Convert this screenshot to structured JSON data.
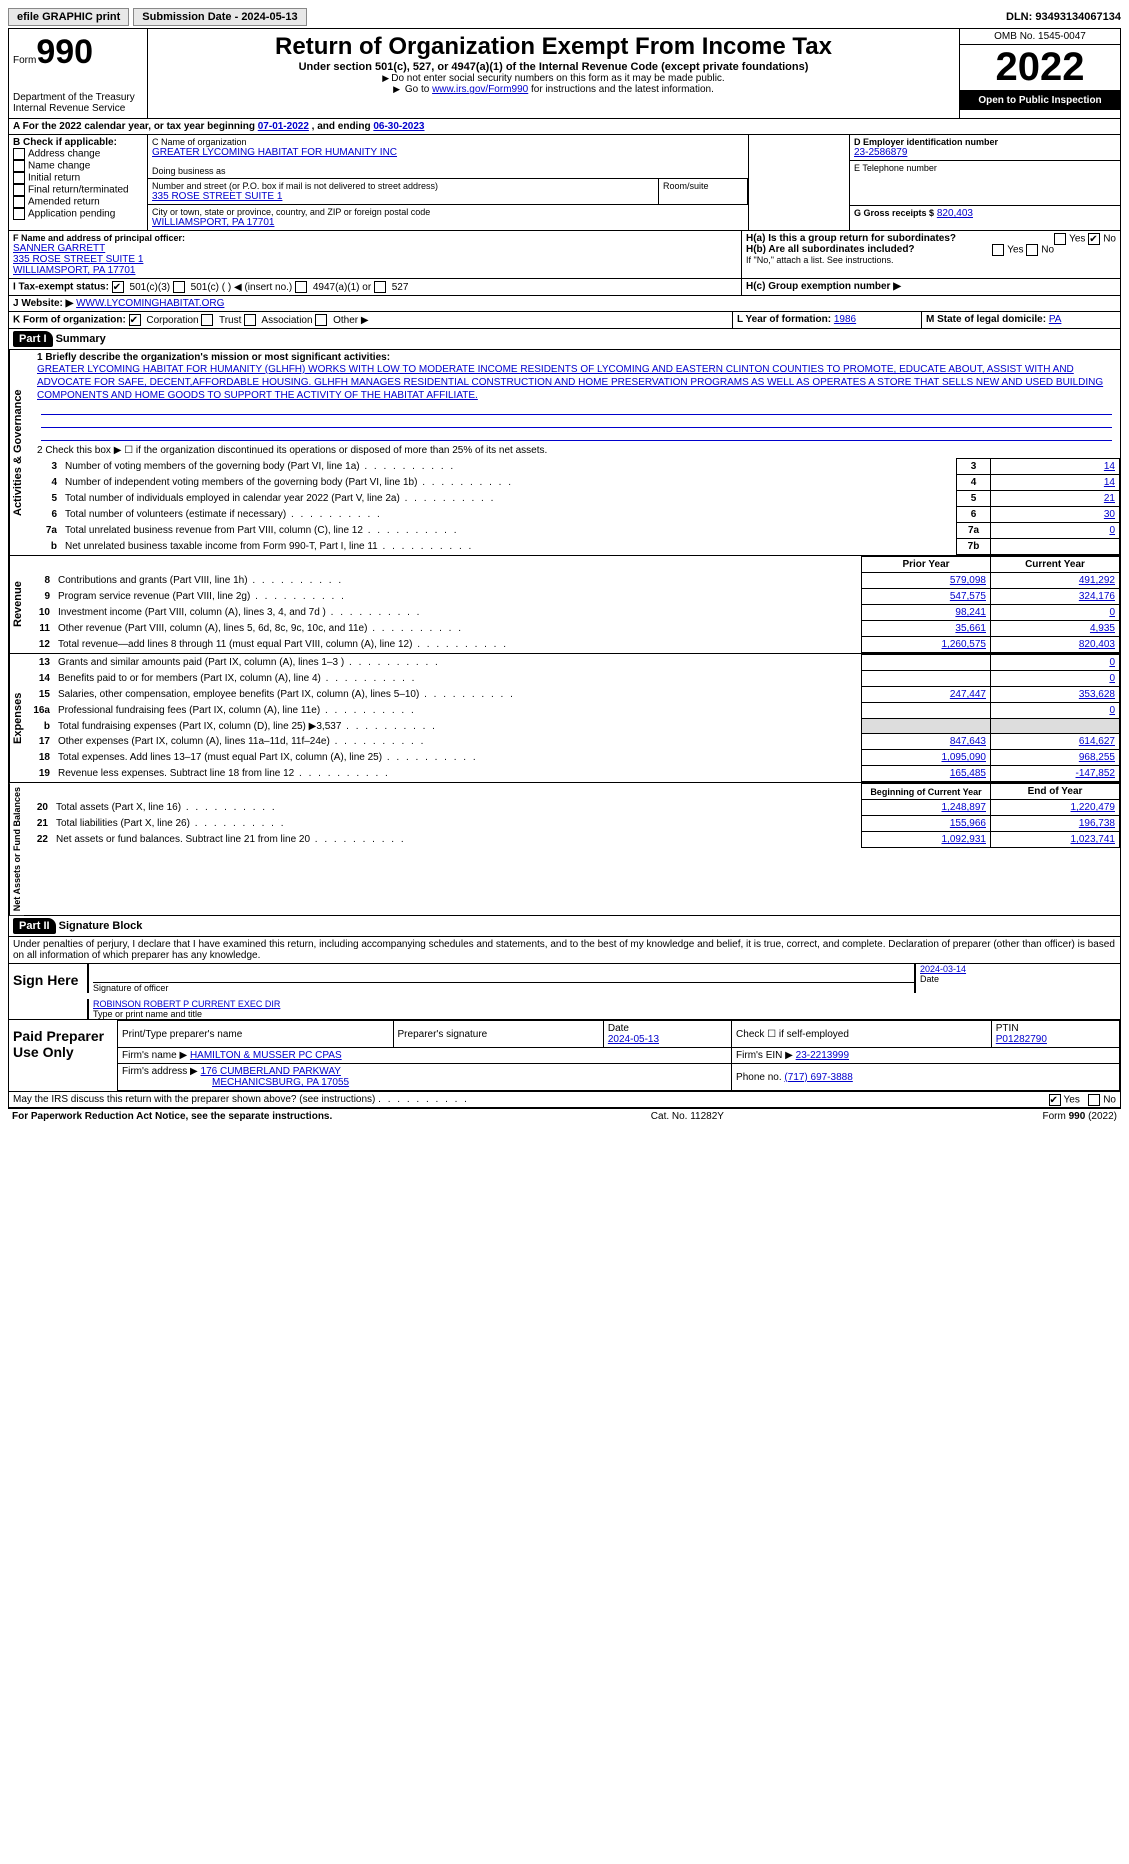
{
  "topbar": {
    "efile": "efile GRAPHIC print",
    "submission": "Submission Date - 2024-05-13",
    "dln_label": "DLN:",
    "dln": "93493134067134"
  },
  "header": {
    "form_label": "Form",
    "form_num": "990",
    "dept": "Department of the Treasury",
    "irs": "Internal Revenue Service",
    "title": "Return of Organization Exempt From Income Tax",
    "subtitle": "Under section 501(c), 527, or 4947(a)(1) of the Internal Revenue Code (except private foundations)",
    "note1": "Do not enter social security numbers on this form as it may be made public.",
    "note2_pre": "Go to ",
    "note2_link": "www.irs.gov/Form990",
    "note2_post": " for instructions and the latest information.",
    "omb": "OMB No. 1545-0047",
    "year": "2022",
    "open": "Open to Public Inspection"
  },
  "periodA": {
    "text_pre": "For the 2022 calendar year, or tax year beginning ",
    "begin": "07-01-2022",
    "mid": " , and ending ",
    "end": "06-30-2023"
  },
  "sectionB": {
    "label": "B Check if applicable:",
    "items": [
      "Address change",
      "Name change",
      "Initial return",
      "Final return/terminated",
      "Amended return",
      "Application pending"
    ]
  },
  "sectionC": {
    "name_label": "C Name of organization",
    "name": "GREATER LYCOMING HABITAT FOR HUMANITY INC",
    "dba_label": "Doing business as",
    "addr_label": "Number and street (or P.O. box if mail is not delivered to street address)",
    "addr": "335 ROSE STREET SUITE 1",
    "room_label": "Room/suite",
    "city_label": "City or town, state or province, country, and ZIP or foreign postal code",
    "city": "WILLIAMSPORT, PA  17701"
  },
  "sectionD": {
    "label": "D Employer identification number",
    "value": "23-2586879"
  },
  "sectionE": {
    "label": "E Telephone number"
  },
  "sectionG": {
    "label": "G Gross receipts $",
    "value": "820,403"
  },
  "sectionF": {
    "label": "F  Name and address of principal officer:",
    "name": "SANNER GARRETT",
    "addr1": "335 ROSE STREET SUITE 1",
    "addr2": "WILLIAMSPORT, PA  17701"
  },
  "sectionH": {
    "ha": "H(a)  Is this a group return for subordinates?",
    "hb": "H(b)  Are all subordinates included?",
    "hb_note": "If \"No,\" attach a list. See instructions.",
    "hc": "H(c)  Group exemption number ▶",
    "yes": "Yes",
    "no": "No"
  },
  "sectionI": {
    "label": "I   Tax-exempt status:",
    "opts": [
      "501(c)(3)",
      "501(c) (  ) ◀ (insert no.)",
      "4947(a)(1) or",
      "527"
    ]
  },
  "sectionJ": {
    "label": "J   Website: ▶",
    "value": "WWW.LYCOMINGHABITAT.ORG"
  },
  "sectionK": {
    "label": "K Form of organization:",
    "opts": [
      "Corporation",
      "Trust",
      "Association",
      "Other ▶"
    ]
  },
  "sectionL": {
    "label": "L Year of formation:",
    "value": "1986"
  },
  "sectionM": {
    "label": "M State of legal domicile:",
    "value": "PA"
  },
  "part1": {
    "header": "Part I",
    "title": "Summary",
    "line1_label": "1  Briefly describe the organization's mission or most significant activities:",
    "mission": "GREATER LYCOMING HABITAT FOR HUMANITY (GLHFH) WORKS WITH LOW TO MODERATE INCOME RESIDENTS OF LYCOMING AND EASTERN CLINTON COUNTIES TO PROMOTE, EDUCATE ABOUT, ASSIST WITH AND ADVOCATE FOR SAFE, DECENT,AFFORDABLE HOUSING. GLHFH MANAGES RESIDENTIAL CONSTRUCTION AND HOME PRESERVATION PROGRAMS AS WELL AS OPERATES A STORE THAT SELLS NEW AND USED BUILDING COMPONENTS AND HOME GOODS TO SUPPORT THE ACTIVITY OF THE HABITAT AFFILIATE.",
    "line2": "2   Check this box ▶ ☐  if the organization discontinued its operations or disposed of more than 25% of its net assets.",
    "vert_activities": "Activities & Governance",
    "gov_rows": [
      {
        "n": "3",
        "d": "Number of voting members of the governing body (Part VI, line 1a)",
        "k": "3",
        "v": "14"
      },
      {
        "n": "4",
        "d": "Number of independent voting members of the governing body (Part VI, line 1b)",
        "k": "4",
        "v": "14"
      },
      {
        "n": "5",
        "d": "Total number of individuals employed in calendar year 2022 (Part V, line 2a)",
        "k": "5",
        "v": "21"
      },
      {
        "n": "6",
        "d": "Total number of volunteers (estimate if necessary)",
        "k": "6",
        "v": "30"
      },
      {
        "n": "7a",
        "d": "Total unrelated business revenue from Part VIII, column (C), line 12",
        "k": "7a",
        "v": "0"
      },
      {
        "n": "b",
        "d": "Net unrelated business taxable income from Form 990-T, Part I, line 11",
        "k": "7b",
        "v": ""
      }
    ],
    "vert_revenue": "Revenue",
    "rev_header": {
      "prior": "Prior Year",
      "current": "Current Year"
    },
    "rev_rows": [
      {
        "n": "8",
        "d": "Contributions and grants (Part VIII, line 1h)",
        "p": "579,098",
        "c": "491,292"
      },
      {
        "n": "9",
        "d": "Program service revenue (Part VIII, line 2g)",
        "p": "547,575",
        "c": "324,176"
      },
      {
        "n": "10",
        "d": "Investment income (Part VIII, column (A), lines 3, 4, and 7d )",
        "p": "98,241",
        "c": "0"
      },
      {
        "n": "11",
        "d": "Other revenue (Part VIII, column (A), lines 5, 6d, 8c, 9c, 10c, and 11e)",
        "p": "35,661",
        "c": "4,935"
      },
      {
        "n": "12",
        "d": "Total revenue—add lines 8 through 11 (must equal Part VIII, column (A), line 12)",
        "p": "1,260,575",
        "c": "820,403"
      }
    ],
    "vert_expenses": "Expenses",
    "exp_rows": [
      {
        "n": "13",
        "d": "Grants and similar amounts paid (Part IX, column (A), lines 1–3 )",
        "p": "",
        "c": "0"
      },
      {
        "n": "14",
        "d": "Benefits paid to or for members (Part IX, column (A), line 4)",
        "p": "",
        "c": "0"
      },
      {
        "n": "15",
        "d": "Salaries, other compensation, employee benefits (Part IX, column (A), lines 5–10)",
        "p": "247,447",
        "c": "353,628"
      },
      {
        "n": "16a",
        "d": "Professional fundraising fees (Part IX, column (A), line 11e)",
        "p": "",
        "c": "0"
      },
      {
        "n": "b",
        "d": "Total fundraising expenses (Part IX, column (D), line 25) ▶3,537",
        "p": "shade",
        "c": "shade"
      },
      {
        "n": "17",
        "d": "Other expenses (Part IX, column (A), lines 11a–11d, 11f–24e)",
        "p": "847,643",
        "c": "614,627"
      },
      {
        "n": "18",
        "d": "Total expenses. Add lines 13–17 (must equal Part IX, column (A), line 25)",
        "p": "1,095,090",
        "c": "968,255"
      },
      {
        "n": "19",
        "d": "Revenue less expenses. Subtract line 18 from line 12",
        "p": "165,485",
        "c": "-147,852"
      }
    ],
    "vert_net": "Net Assets or Fund Balances",
    "net_header": {
      "begin": "Beginning of Current Year",
      "end": "End of Year"
    },
    "net_rows": [
      {
        "n": "20",
        "d": "Total assets (Part X, line 16)",
        "p": "1,248,897",
        "c": "1,220,479"
      },
      {
        "n": "21",
        "d": "Total liabilities (Part X, line 26)",
        "p": "155,966",
        "c": "196,738"
      },
      {
        "n": "22",
        "d": "Net assets or fund balances. Subtract line 21 from line 20",
        "p": "1,092,931",
        "c": "1,023,741"
      }
    ]
  },
  "part2": {
    "header": "Part II",
    "title": "Signature Block",
    "declaration": "Under penalties of perjury, I declare that I have examined this return, including accompanying schedules and statements, and to the best of my knowledge and belief, it is true, correct, and complete. Declaration of preparer (other than officer) is based on all information of which preparer has any knowledge.",
    "sign_here": "Sign Here",
    "sig_officer": "Signature of officer",
    "sig_date": "2024-03-14",
    "date_label": "Date",
    "officer_name": "ROBINSON ROBERT P  CURRENT EXEC DIR",
    "name_label": "Type or print name and title",
    "paid": "Paid Preparer Use Only",
    "prep_headers": [
      "Print/Type preparer's name",
      "Preparer's signature",
      "Date",
      "Check ☐ if self-employed",
      "PTIN"
    ],
    "prep_date": "2024-05-13",
    "ptin": "P01282790",
    "firm_name_label": "Firm's name    ▶",
    "firm_name": "HAMILTON & MUSSER PC CPAS",
    "firm_ein_label": "Firm's EIN ▶",
    "firm_ein": "23-2213999",
    "firm_addr_label": "Firm's address ▶",
    "firm_addr": "176 CUMBERLAND PARKWAY",
    "firm_city": "MECHANICSBURG, PA  17055",
    "phone_label": "Phone no.",
    "phone": "(717) 697-3888",
    "discuss": "May the IRS discuss this return with the preparer shown above? (see instructions)",
    "yes": "Yes",
    "no": "No"
  },
  "footer": {
    "pra": "For Paperwork Reduction Act Notice, see the separate instructions.",
    "cat": "Cat. No. 11282Y",
    "form": "Form 990 (2022)"
  }
}
